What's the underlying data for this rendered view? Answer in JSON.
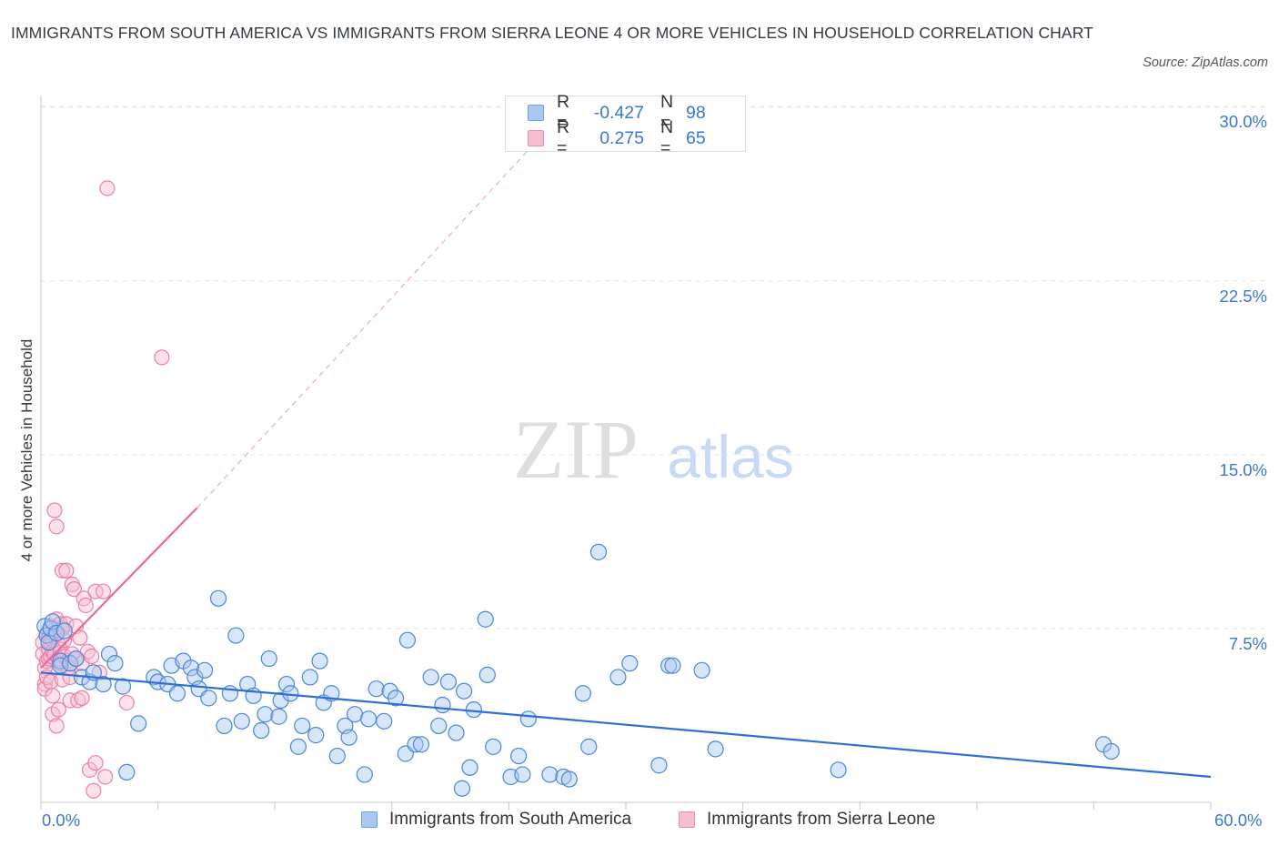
{
  "title": "IMMIGRANTS FROM SOUTH AMERICA VS IMMIGRANTS FROM SIERRA LEONE 4 OR MORE VEHICLES IN HOUSEHOLD CORRELATION CHART",
  "source": "Source: ZipAtlas.com",
  "watermark": {
    "zip": "ZIP",
    "atlas": "atlas"
  },
  "legend": {
    "rows": [
      {
        "swatch_fill": "#a9c8f2",
        "swatch_stroke": "#6f9fe0",
        "r_label": "R =",
        "r_value": "-0.427",
        "n_label": "N =",
        "n_value": "98"
      },
      {
        "swatch_fill": "#f6bfd0",
        "swatch_stroke": "#ea8fb0",
        "r_label": "R =",
        "r_value": "0.275",
        "n_label": "N =",
        "n_value": "65"
      }
    ]
  },
  "bottom_legend": [
    {
      "label": "Immigrants from South America",
      "fill": "#a9c8f2",
      "stroke": "#6f9fe0"
    },
    {
      "label": "Immigrants from Sierra Leone",
      "fill": "#f6bfd0",
      "stroke": "#ea8fb0"
    }
  ],
  "colors": {
    "blue": "#4a86d8",
    "blue_line": "#2f6fcf",
    "pink": "#ec7fa6",
    "pink_line": "#e8689a",
    "axis_text": "#3b78d0",
    "grid": "#e3e3e3"
  },
  "chart_data": {
    "type": "scatter",
    "title": "IMMIGRANTS FROM SOUTH AMERICA VS IMMIGRANTS FROM SIERRA LEONE 4 OR MORE VEHICLES IN HOUSEHOLD CORRELATION CHART",
    "xlabel": "",
    "ylabel": "4 or more Vehicles in Household",
    "xlim": [
      0,
      60
    ],
    "ylim": [
      0,
      30.5
    ],
    "x_tick_labels": [
      {
        "value": 0,
        "label": "0.0%"
      },
      {
        "value": 60,
        "label": "60.0%"
      }
    ],
    "y_tick_labels": [
      {
        "value": 7.5,
        "label": "7.5%"
      },
      {
        "value": 15,
        "label": "15.0%"
      },
      {
        "value": 22.5,
        "label": "22.5%"
      },
      {
        "value": 30,
        "label": "30.0%"
      }
    ],
    "grid": true,
    "series": [
      {
        "name": "Immigrants from South America",
        "R": -0.427,
        "N": 98,
        "trend": {
          "x0": 0,
          "y0": 5.6,
          "x1": 60,
          "y1": 1.1
        },
        "points": [
          [
            0.2,
            7.6
          ],
          [
            0.3,
            7.2
          ],
          [
            0.4,
            6.9
          ],
          [
            0.5,
            7.5
          ],
          [
            0.6,
            7.8
          ],
          [
            0.8,
            7.3
          ],
          [
            1.0,
            6.1
          ],
          [
            1.2,
            7.4
          ],
          [
            1.0,
            5.9
          ],
          [
            1.5,
            6.0
          ],
          [
            1.8,
            6.2
          ],
          [
            2.1,
            5.4
          ],
          [
            2.5,
            5.2
          ],
          [
            2.7,
            5.6
          ],
          [
            3.2,
            5.1
          ],
          [
            3.5,
            6.4
          ],
          [
            3.8,
            6.0
          ],
          [
            4.2,
            5.0
          ],
          [
            4.4,
            1.3
          ],
          [
            5.0,
            3.4
          ],
          [
            5.8,
            5.4
          ],
          [
            6.0,
            5.2
          ],
          [
            6.5,
            5.1
          ],
          [
            6.7,
            5.9
          ],
          [
            7.0,
            4.7
          ],
          [
            7.3,
            6.1
          ],
          [
            7.7,
            5.8
          ],
          [
            7.9,
            5.4
          ],
          [
            8.1,
            4.9
          ],
          [
            8.4,
            5.7
          ],
          [
            8.6,
            4.5
          ],
          [
            9.1,
            8.8
          ],
          [
            9.4,
            3.3
          ],
          [
            9.7,
            4.7
          ],
          [
            10.0,
            7.2
          ],
          [
            10.3,
            3.5
          ],
          [
            10.6,
            5.1
          ],
          [
            10.9,
            4.6
          ],
          [
            11.3,
            3.1
          ],
          [
            11.5,
            3.8
          ],
          [
            11.7,
            6.2
          ],
          [
            12.2,
            3.7
          ],
          [
            12.3,
            4.4
          ],
          [
            12.6,
            5.1
          ],
          [
            12.8,
            4.7
          ],
          [
            13.2,
            2.4
          ],
          [
            13.4,
            3.3
          ],
          [
            13.8,
            5.4
          ],
          [
            14.1,
            2.9
          ],
          [
            14.3,
            6.1
          ],
          [
            14.5,
            4.3
          ],
          [
            14.9,
            4.7
          ],
          [
            15.2,
            2.0
          ],
          [
            15.6,
            3.3
          ],
          [
            15.8,
            2.8
          ],
          [
            16.1,
            3.8
          ],
          [
            16.6,
            1.2
          ],
          [
            16.8,
            3.6
          ],
          [
            17.2,
            4.9
          ],
          [
            17.6,
            3.5
          ],
          [
            17.9,
            4.8
          ],
          [
            18.2,
            4.5
          ],
          [
            18.7,
            2.1
          ],
          [
            18.8,
            7.0
          ],
          [
            19.2,
            2.5
          ],
          [
            19.5,
            2.5
          ],
          [
            20.0,
            5.4
          ],
          [
            20.4,
            3.3
          ],
          [
            20.6,
            4.2
          ],
          [
            20.9,
            5.2
          ],
          [
            21.3,
            3.0
          ],
          [
            21.6,
            0.6
          ],
          [
            21.7,
            4.8
          ],
          [
            22.0,
            1.5
          ],
          [
            22.2,
            4.0
          ],
          [
            22.8,
            7.9
          ],
          [
            22.9,
            5.5
          ],
          [
            23.2,
            2.4
          ],
          [
            24.1,
            1.1
          ],
          [
            24.5,
            2.0
          ],
          [
            24.7,
            1.2
          ],
          [
            25.0,
            3.6
          ],
          [
            26.1,
            1.2
          ],
          [
            26.8,
            1.1
          ],
          [
            27.1,
            1.0
          ],
          [
            27.8,
            4.7
          ],
          [
            28.1,
            2.4
          ],
          [
            28.6,
            10.8
          ],
          [
            29.6,
            5.4
          ],
          [
            30.2,
            6.0
          ],
          [
            31.7,
            1.6
          ],
          [
            32.2,
            5.9
          ],
          [
            32.4,
            5.9
          ],
          [
            33.9,
            5.7
          ],
          [
            34.6,
            2.3
          ],
          [
            40.9,
            1.4
          ],
          [
            54.5,
            2.5
          ],
          [
            54.9,
            2.2
          ]
        ]
      },
      {
        "name": "Immigrants from Sierra Leone",
        "R": 0.275,
        "N": 65,
        "trend": {
          "x0": 0,
          "y0": 5.8,
          "x1": 8.0,
          "y1": 12.7
        },
        "trend_extension": {
          "x0": 8.0,
          "y0": 12.7,
          "x1": 25.5,
          "y1": 28.6
        },
        "points": [
          [
            0.1,
            6.9
          ],
          [
            0.1,
            6.4
          ],
          [
            0.2,
            5.8
          ],
          [
            0.2,
            5.1
          ],
          [
            0.2,
            4.9
          ],
          [
            0.3,
            7.3
          ],
          [
            0.3,
            6.1
          ],
          [
            0.3,
            5.4
          ],
          [
            0.4,
            7.1
          ],
          [
            0.4,
            6.6
          ],
          [
            0.4,
            6.2
          ],
          [
            0.5,
            7.6
          ],
          [
            0.5,
            6.9
          ],
          [
            0.5,
            6.3
          ],
          [
            0.5,
            5.2
          ],
          [
            0.6,
            7.0
          ],
          [
            0.6,
            6.5
          ],
          [
            0.6,
            4.6
          ],
          [
            0.6,
            3.8
          ],
          [
            0.7,
            12.6
          ],
          [
            0.7,
            7.2
          ],
          [
            0.7,
            6.4
          ],
          [
            0.8,
            11.9
          ],
          [
            0.8,
            7.9
          ],
          [
            0.8,
            3.3
          ],
          [
            0.9,
            6.8
          ],
          [
            0.9,
            6.2
          ],
          [
            0.9,
            4.0
          ],
          [
            1.0,
            7.7
          ],
          [
            1.0,
            6.6
          ],
          [
            1.0,
            6.0
          ],
          [
            1.1,
            10.0
          ],
          [
            1.1,
            7.5
          ],
          [
            1.1,
            5.3
          ],
          [
            1.2,
            7.0
          ],
          [
            1.2,
            6.3
          ],
          [
            1.3,
            10.0
          ],
          [
            1.3,
            7.7
          ],
          [
            1.4,
            6.1
          ],
          [
            1.4,
            5.8
          ],
          [
            1.5,
            5.4
          ],
          [
            1.5,
            4.4
          ],
          [
            1.6,
            9.4
          ],
          [
            1.6,
            6.4
          ],
          [
            1.7,
            9.2
          ],
          [
            1.8,
            7.6
          ],
          [
            1.8,
            6.2
          ],
          [
            1.9,
            4.4
          ],
          [
            2.0,
            7.1
          ],
          [
            2.1,
            6.0
          ],
          [
            2.1,
            4.5
          ],
          [
            2.2,
            8.8
          ],
          [
            2.3,
            8.5
          ],
          [
            2.4,
            6.5
          ],
          [
            2.5,
            1.4
          ],
          [
            2.6,
            6.3
          ],
          [
            2.7,
            0.5
          ],
          [
            2.8,
            1.7
          ],
          [
            2.8,
            9.1
          ],
          [
            3.0,
            5.6
          ],
          [
            3.2,
            9.1
          ],
          [
            3.3,
            1.1
          ],
          [
            3.4,
            26.5
          ],
          [
            4.4,
            4.3
          ],
          [
            6.2,
            19.2
          ]
        ]
      }
    ]
  }
}
